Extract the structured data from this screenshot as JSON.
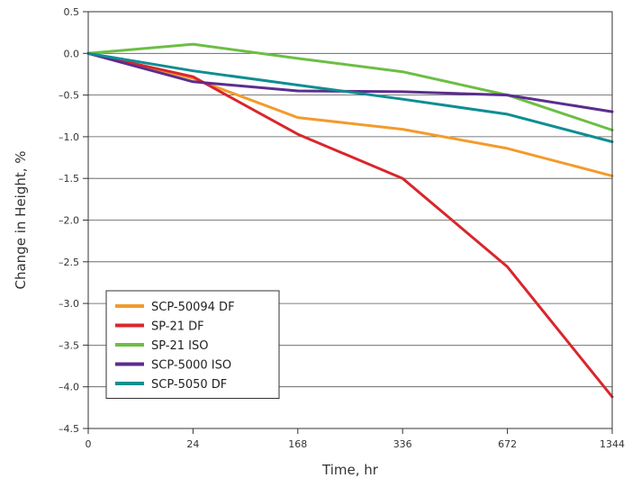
{
  "chart_data": {
    "type": "line",
    "title": "",
    "xlabel": "Time, hr",
    "ylabel": "Change in Height, %",
    "x_tick_labels": [
      "0",
      "24",
      "168",
      "336",
      "672",
      "1344"
    ],
    "ylim": [
      -4.5,
      0.5
    ],
    "y_ticks": [
      "0.5",
      "0.0",
      "–0.5",
      "–1.0",
      "–1.5",
      "–2.0",
      "–2.5",
      "–3.0",
      "–3.5",
      "–4.0",
      "–4.5"
    ],
    "grid": true,
    "legend_position": "bottom-left",
    "series": [
      {
        "name": "SCP-50094 DF",
        "color": "#F39B2B",
        "values": [
          0.0,
          -0.3,
          -0.77,
          -0.91,
          -1.14,
          -1.47
        ]
      },
      {
        "name": "SP-21 DF",
        "color": "#D9262C",
        "values": [
          0.0,
          -0.28,
          -0.97,
          -1.5,
          -2.56,
          -4.12
        ]
      },
      {
        "name": "SP-21 ISO",
        "color": "#6CBE45",
        "values": [
          0.0,
          0.11,
          -0.06,
          -0.22,
          -0.5,
          -0.92
        ]
      },
      {
        "name": "SCP-5000 ISO",
        "color": "#5B2D8E",
        "values": [
          0.0,
          -0.34,
          -0.45,
          -0.46,
          -0.5,
          -0.7
        ]
      },
      {
        "name": "SCP-5050 DF",
        "color": "#0E8E92",
        "values": [
          0.0,
          -0.21,
          -0.38,
          -0.55,
          -0.73,
          -1.06
        ]
      }
    ]
  }
}
